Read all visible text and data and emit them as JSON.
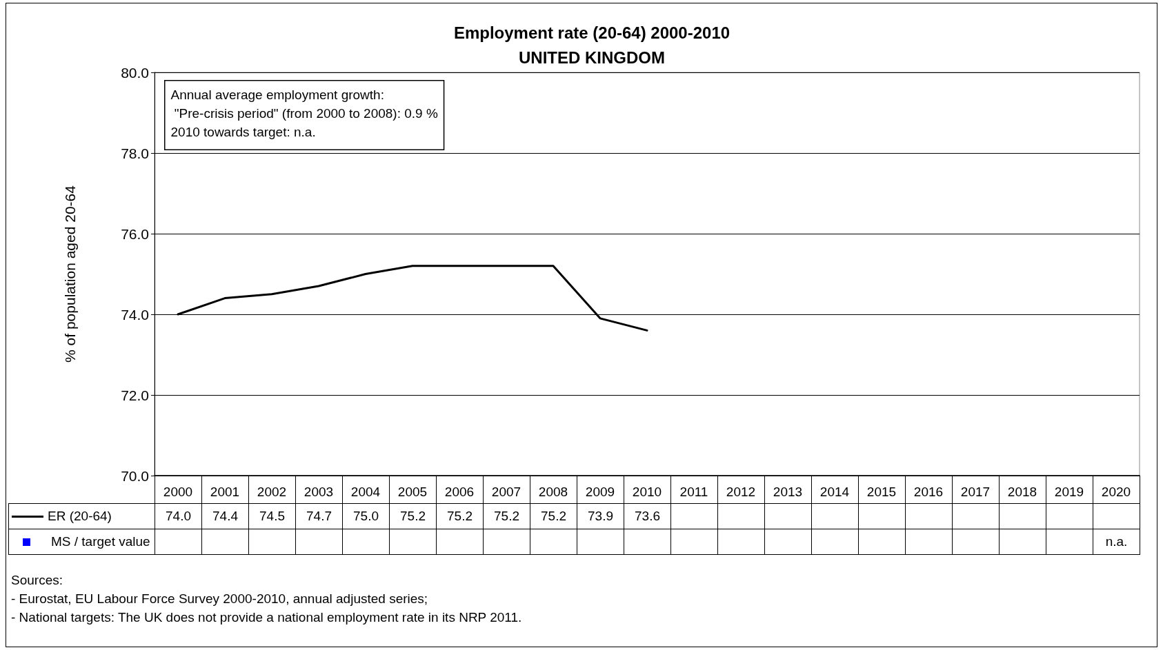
{
  "chart_data": {
    "type": "line",
    "title": "Employment rate (20-64) 2000-2010",
    "subtitle": "UNITED KINGDOM",
    "ylabel": "% of population aged 20-64",
    "categories": [
      "2000",
      "2001",
      "2002",
      "2003",
      "2004",
      "2005",
      "2006",
      "2007",
      "2008",
      "2009",
      "2010",
      "2011",
      "2012",
      "2013",
      "2014",
      "2015",
      "2016",
      "2017",
      "2018",
      "2019",
      "2020"
    ],
    "series": [
      {
        "name": "ER (20-64)",
        "color": "#000000",
        "marker": "none",
        "values": [
          74.0,
          74.4,
          74.5,
          74.7,
          75.0,
          75.2,
          75.2,
          75.2,
          75.2,
          73.9,
          73.6,
          null,
          null,
          null,
          null,
          null,
          null,
          null,
          null,
          null,
          null
        ],
        "value_labels": [
          "74.0",
          "74.4",
          "74.5",
          "74.7",
          "75.0",
          "75.2",
          "75.2",
          "75.2",
          "75.2",
          "73.9",
          "73.6",
          null,
          null,
          null,
          null,
          null,
          null,
          null,
          null,
          null,
          null
        ]
      },
      {
        "name": "MS / target value",
        "color": "#0000ff",
        "marker": "square",
        "values": [
          null,
          null,
          null,
          null,
          null,
          null,
          null,
          null,
          null,
          null,
          null,
          null,
          null,
          null,
          null,
          null,
          null,
          null,
          null,
          null,
          null
        ],
        "value_labels": [
          null,
          null,
          null,
          null,
          null,
          null,
          null,
          null,
          null,
          null,
          null,
          null,
          null,
          null,
          null,
          null,
          null,
          null,
          null,
          null,
          "n.a."
        ]
      }
    ],
    "ylim": [
      70,
      80
    ],
    "yticks": [
      {
        "value": 70,
        "label": "70.0"
      },
      {
        "value": 72,
        "label": "72.0"
      },
      {
        "value": 74,
        "label": "74.0"
      },
      {
        "value": 76,
        "label": "76.0"
      },
      {
        "value": 78,
        "label": "78.0"
      },
      {
        "value": 80,
        "label": "80.0"
      }
    ],
    "grid": "y",
    "legend": "bottom",
    "line_style": "solid",
    "annotations": [
      "Annual average employment growth:\n \"Pre-crisis period\" (from 2000 to 2008): 0.9 %\n2010 towards target: n.a.",
      "Sources:\n- Eurostat, EU Labour Force Survey 2000-2010, annual adjusted series;\n- National targets: The UK does not provide a national employment rate in its NRP 2011."
    ]
  }
}
